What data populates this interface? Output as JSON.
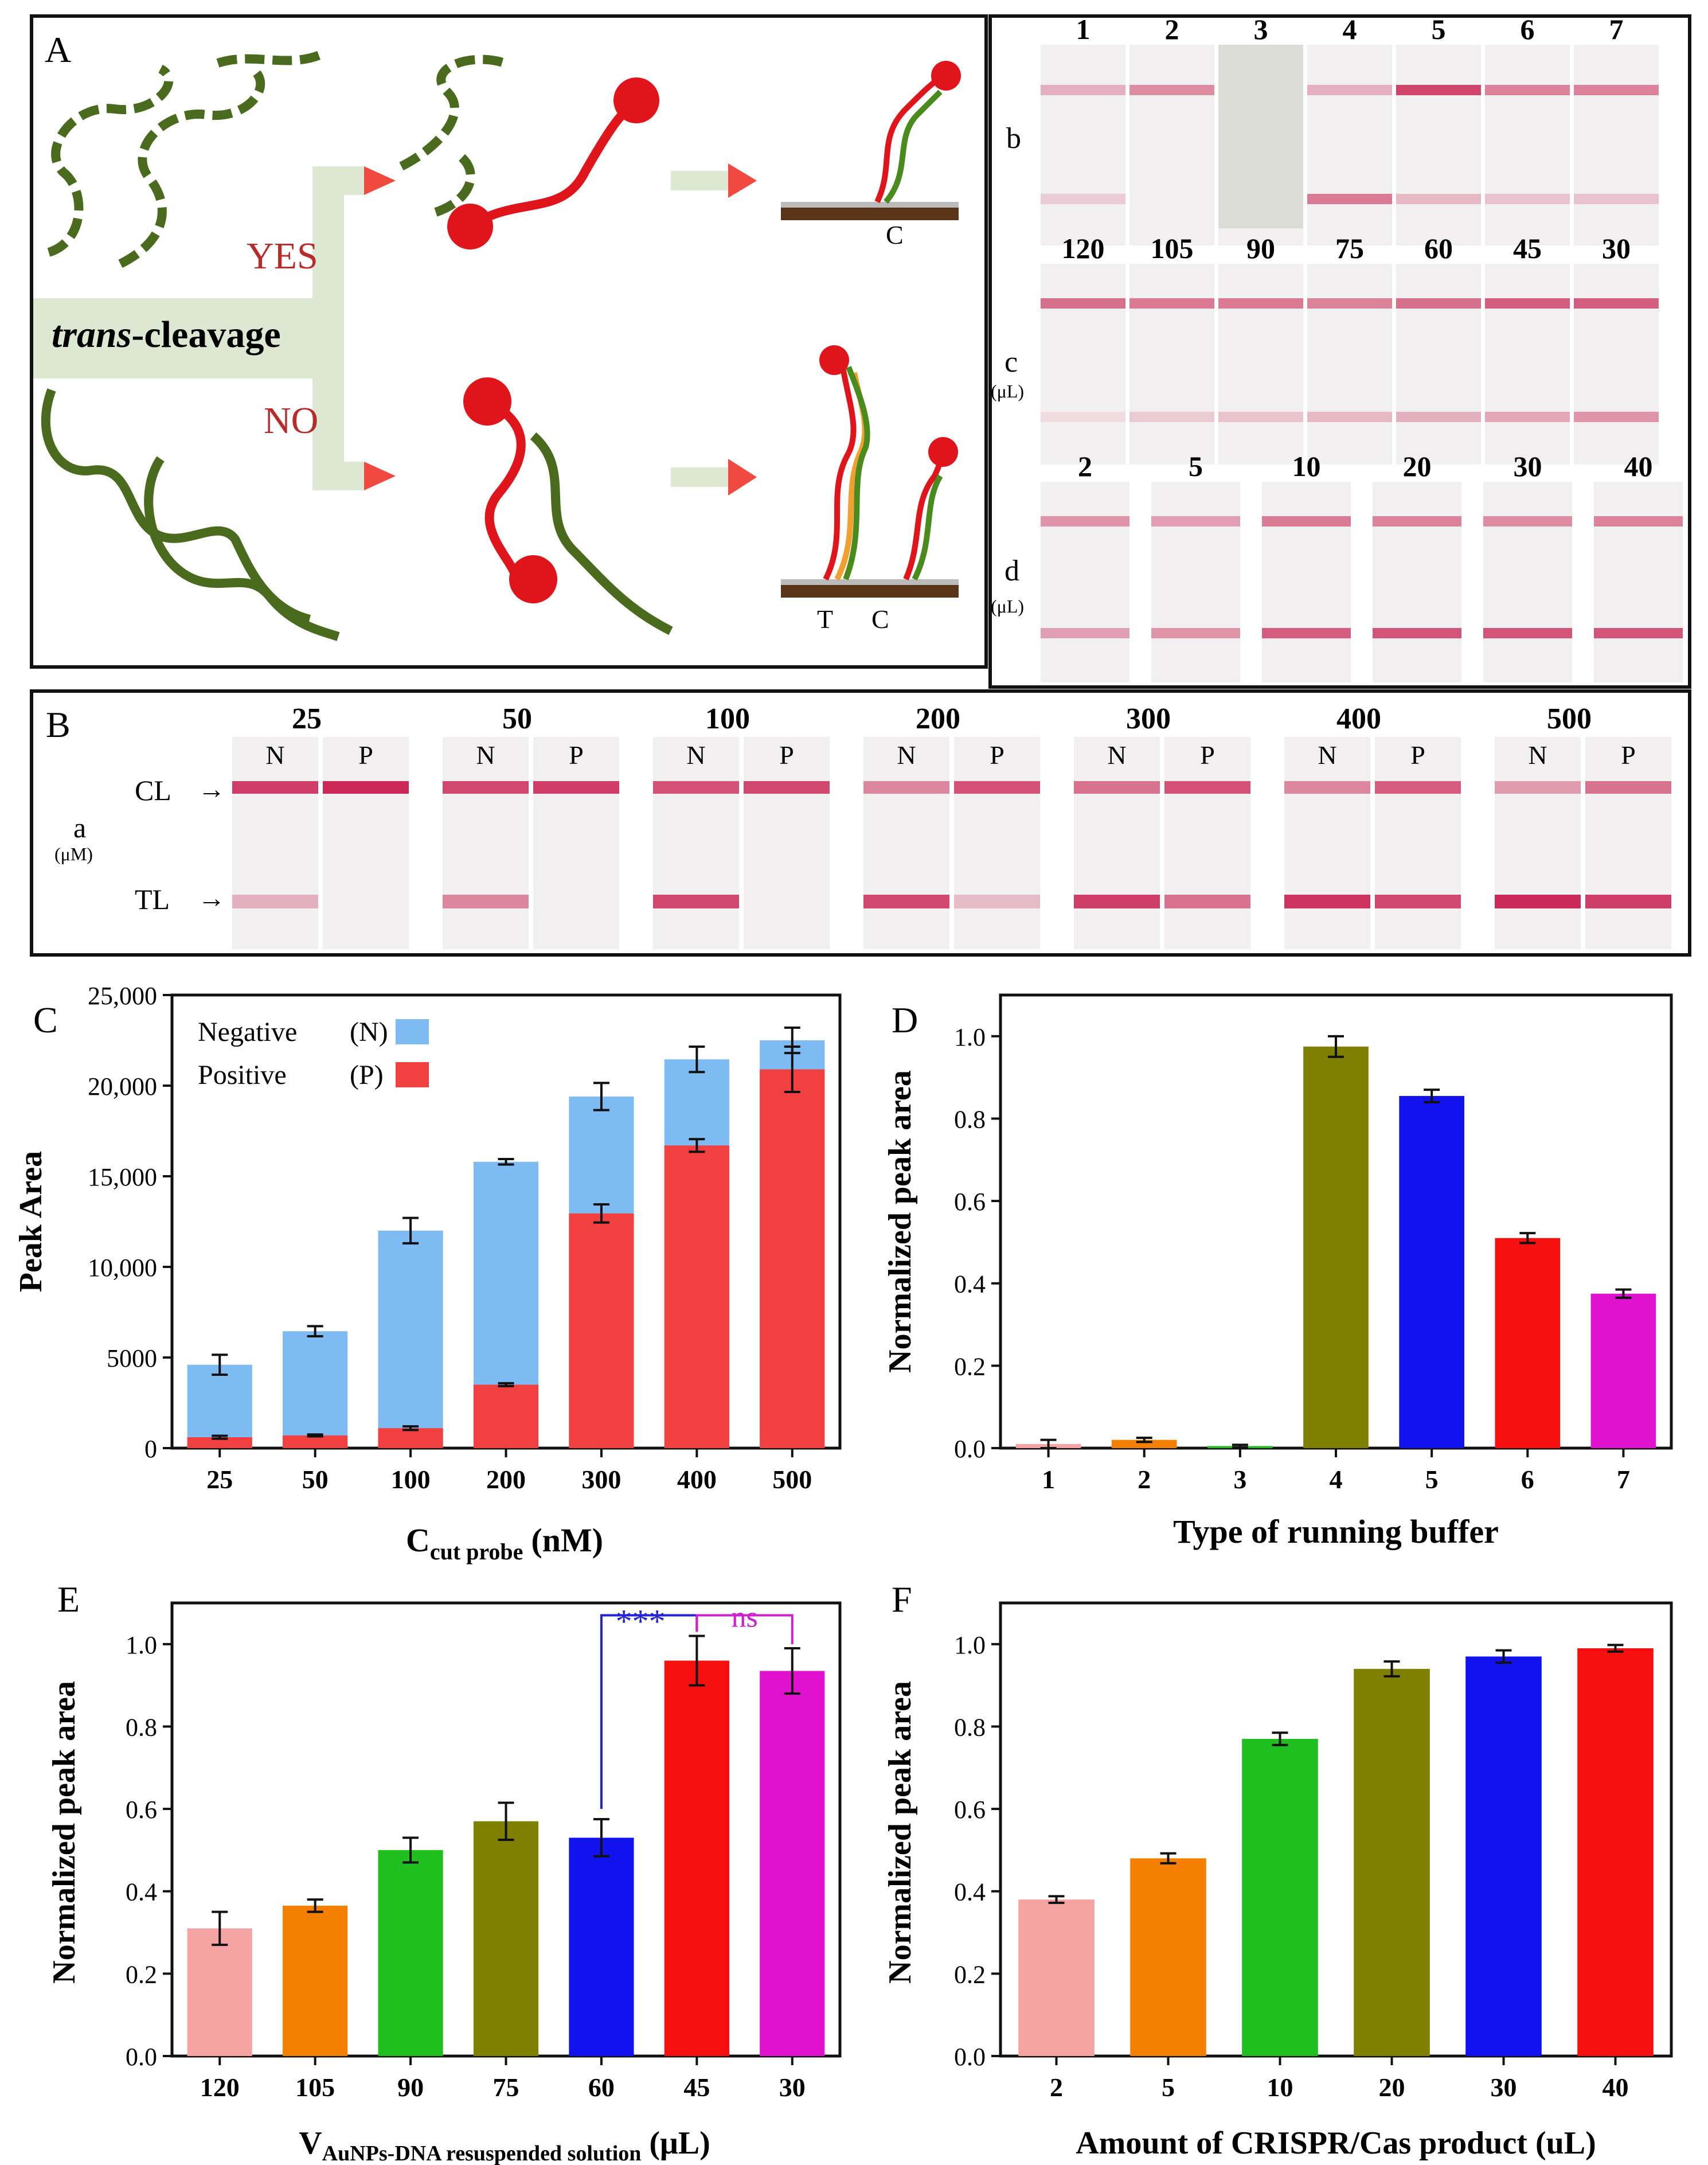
{
  "panel_A": {
    "label": "A",
    "yes": "YES",
    "no": "NO",
    "trans_italic": "trans",
    "trans_rest": "-cleavage",
    "line_C": "C",
    "line_T": "T",
    "line_C2": "C",
    "colors": {
      "ssdna": "#4a6b1e",
      "probe": "#e0151b",
      "arrow": "#f04a40",
      "bar": "#dde8d2",
      "substrate": "#5a3417"
    }
  },
  "strips_b": {
    "label": "b",
    "labels": [
      "1",
      "2",
      "3",
      "4",
      "5",
      "6",
      "7"
    ]
  },
  "strips_c": {
    "label": "c",
    "unit": "(μL)",
    "labels": [
      "120",
      "105",
      "90",
      "75",
      "60",
      "45",
      "30"
    ]
  },
  "strips_d": {
    "label": "d",
    "unit": "(μL)",
    "labels": [
      "2",
      "5",
      "10",
      "20",
      "30",
      "40"
    ]
  },
  "panel_B": {
    "label": "B",
    "row": "a",
    "unit": "(μM)",
    "cl": "CL",
    "tl": "TL",
    "n": "N",
    "p": "P",
    "concentrations": [
      "25",
      "50",
      "100",
      "200",
      "300",
      "400",
      "500"
    ]
  },
  "chart_data": [
    {
      "panel": "C",
      "type": "bar",
      "title": "",
      "xlabel_main": "C",
      "xlabel_sub": "cut probe",
      "xlabel_unit": "(nM)",
      "ylabel": "Peak Area",
      "ylim": [
        0,
        25000
      ],
      "yticks": [
        "0",
        "5000",
        "10,000",
        "15,000",
        "20,000",
        "25,000"
      ],
      "categories": [
        "25",
        "50",
        "100",
        "200",
        "300",
        "400",
        "500"
      ],
      "legend": [
        {
          "name": "Negative",
          "tag": "(N)",
          "color": "#7dbbf2"
        },
        {
          "name": "Positive",
          "tag": "(P)",
          "color": "#f23f3f"
        }
      ],
      "series": [
        {
          "name": "Negative (N)",
          "values": [
            4600,
            6450,
            12000,
            15800,
            19400,
            21450,
            22500
          ],
          "errors": [
            550,
            280,
            700,
            150,
            750,
            700,
            700
          ]
        },
        {
          "name": "Positive (P)",
          "values": [
            600,
            700,
            1100,
            3500,
            12950,
            16700,
            20900
          ],
          "errors": [
            80,
            50,
            100,
            80,
            500,
            350,
            1250
          ]
        }
      ]
    },
    {
      "panel": "D",
      "type": "bar",
      "xlabel": "Type of running buffer",
      "ylabel": "Normalized peak area",
      "ylim": [
        0,
        1.1
      ],
      "yticks": [
        "0.0",
        "0.2",
        "0.4",
        "0.6",
        "0.8",
        "1.0"
      ],
      "categories": [
        "1",
        "2",
        "3",
        "4",
        "5",
        "6",
        "7"
      ],
      "values": [
        0.01,
        0.02,
        0.005,
        0.975,
        0.855,
        0.51,
        0.375
      ],
      "errors": [
        0.01,
        0.005,
        0.003,
        0.025,
        0.015,
        0.012,
        0.01
      ],
      "colors": [
        "#f5a3a3",
        "#f57f00",
        "#1fbf1f",
        "#7f7f00",
        "#1212ef",
        "#f50f0f",
        "#e012cf"
      ]
    },
    {
      "panel": "E",
      "type": "bar",
      "xlabel_main": "V",
      "xlabel_sub": "AuNPs-DNA resuspended solution",
      "xlabel_unit": "(μL)",
      "ylabel": "Normalized peak area",
      "ylim": [
        0,
        1.1
      ],
      "yticks": [
        "0.0",
        "0.2",
        "0.4",
        "0.6",
        "0.8",
        "1.0"
      ],
      "categories": [
        "120",
        "105",
        "90",
        "75",
        "60",
        "45",
        "30"
      ],
      "values": [
        0.31,
        0.365,
        0.5,
        0.57,
        0.53,
        0.96,
        0.935
      ],
      "errors": [
        0.04,
        0.015,
        0.03,
        0.045,
        0.045,
        0.06,
        0.055
      ],
      "colors": [
        "#f5a3a3",
        "#f57f00",
        "#1fbf1f",
        "#7f7f00",
        "#1212ef",
        "#f50f0f",
        "#e012cf"
      ],
      "annotations": [
        {
          "text": "***",
          "between": [
            "60",
            "45"
          ],
          "color": "#2323d2"
        },
        {
          "text": "ns",
          "between": [
            "45",
            "30"
          ],
          "color": "#cc22cc"
        }
      ]
    },
    {
      "panel": "F",
      "type": "bar",
      "xlabel": "Amount of CRISPR/Cas product (uL)",
      "ylabel": "Normalized peak area",
      "ylim": [
        0,
        1.1
      ],
      "yticks": [
        "0.0",
        "0.2",
        "0.4",
        "0.6",
        "0.8",
        "1.0"
      ],
      "categories": [
        "2",
        "5",
        "10",
        "20",
        "30",
        "40"
      ],
      "values": [
        0.38,
        0.48,
        0.77,
        0.94,
        0.97,
        0.99
      ],
      "errors": [
        0.008,
        0.012,
        0.015,
        0.018,
        0.015,
        0.008
      ],
      "colors": [
        "#f5a3a3",
        "#f57f00",
        "#1fbf1f",
        "#7f7f00",
        "#1212ef",
        "#f50f0f"
      ]
    }
  ]
}
